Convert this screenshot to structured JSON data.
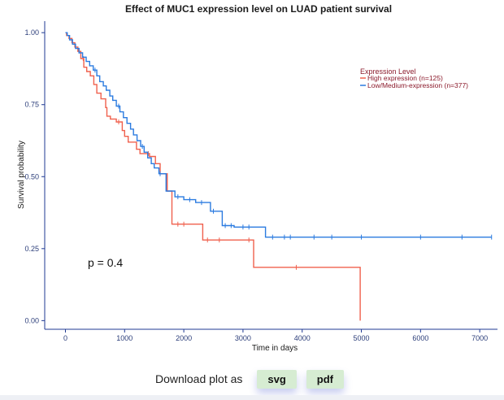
{
  "chart_data": {
    "type": "line",
    "title": "Effect of MUC1 expression level on LUAD patient survival",
    "xlabel": "Time in days",
    "ylabel": "Survival probability",
    "xlim": [
      -350,
      7300
    ],
    "ylim": [
      -0.03,
      1.04
    ],
    "x_ticks": [
      0,
      1000,
      2000,
      3000,
      4000,
      5000,
      6000,
      7000
    ],
    "x_tick_labels": [
      "0",
      "1000",
      "2000",
      "3000",
      "4000",
      "5000",
      "6000",
      "7000"
    ],
    "y_ticks": [
      0,
      0.25,
      0.5,
      0.75,
      1.0
    ],
    "y_tick_labels": [
      "0.00",
      "0.25",
      "0.50",
      "0.75",
      "1.00"
    ],
    "legend": {
      "title": "Expression Level",
      "position": "top-right",
      "entries": [
        "High expression (n=125)",
        "Low/Medium-expression (n=377)"
      ]
    },
    "annotation": "p = 0.4",
    "series": [
      {
        "name": "High expression (n=125)",
        "color": "#f0604d",
        "times": [
          0,
          20,
          60,
          110,
          160,
          210,
          260,
          310,
          360,
          420,
          480,
          530,
          600,
          680,
          700,
          760,
          800,
          860,
          960,
          1000,
          1060,
          1160,
          1200,
          1260,
          1300,
          1420,
          1520,
          1600,
          1720,
          1800,
          2320,
          3180,
          4980
        ],
        "values": [
          1.0,
          0.99,
          0.98,
          0.965,
          0.95,
          0.935,
          0.91,
          0.88,
          0.865,
          0.85,
          0.82,
          0.79,
          0.77,
          0.74,
          0.71,
          0.7,
          0.7,
          0.69,
          0.66,
          0.64,
          0.62,
          0.62,
          0.595,
          0.58,
          0.58,
          0.57,
          0.545,
          0.51,
          0.45,
          0.335,
          0.28,
          0.185,
          0.0
        ],
        "censor_times": [
          300,
          900,
          1400,
          1900,
          2000,
          2400,
          2600,
          3100,
          3900
        ]
      },
      {
        "name": "Low/Medium-expression (n=377)",
        "color": "#2b7be0",
        "times": [
          0,
          30,
          70,
          120,
          170,
          230,
          290,
          350,
          410,
          470,
          530,
          580,
          640,
          690,
          750,
          800,
          860,
          920,
          980,
          1040,
          1100,
          1150,
          1210,
          1270,
          1330,
          1390,
          1450,
          1500,
          1580,
          1700,
          1850,
          2000,
          2200,
          2450,
          2650,
          2850,
          3380
        ],
        "values": [
          1.0,
          0.99,
          0.975,
          0.96,
          0.945,
          0.93,
          0.915,
          0.9,
          0.885,
          0.87,
          0.85,
          0.83,
          0.815,
          0.8,
          0.78,
          0.765,
          0.745,
          0.725,
          0.705,
          0.685,
          0.665,
          0.645,
          0.625,
          0.605,
          0.585,
          0.565,
          0.545,
          0.53,
          0.51,
          0.45,
          0.43,
          0.42,
          0.41,
          0.38,
          0.33,
          0.325,
          0.29
        ],
        "censor_times": [
          500,
          900,
          1300,
          1600,
          1900,
          2100,
          2300,
          2500,
          2700,
          2800,
          3000,
          3100,
          3500,
          3700,
          3800,
          4200,
          4500,
          5000,
          6000,
          6700,
          7200
        ]
      }
    ]
  },
  "download": {
    "label": "Download plot as",
    "svg_label": "svg",
    "pdf_label": "pdf"
  }
}
